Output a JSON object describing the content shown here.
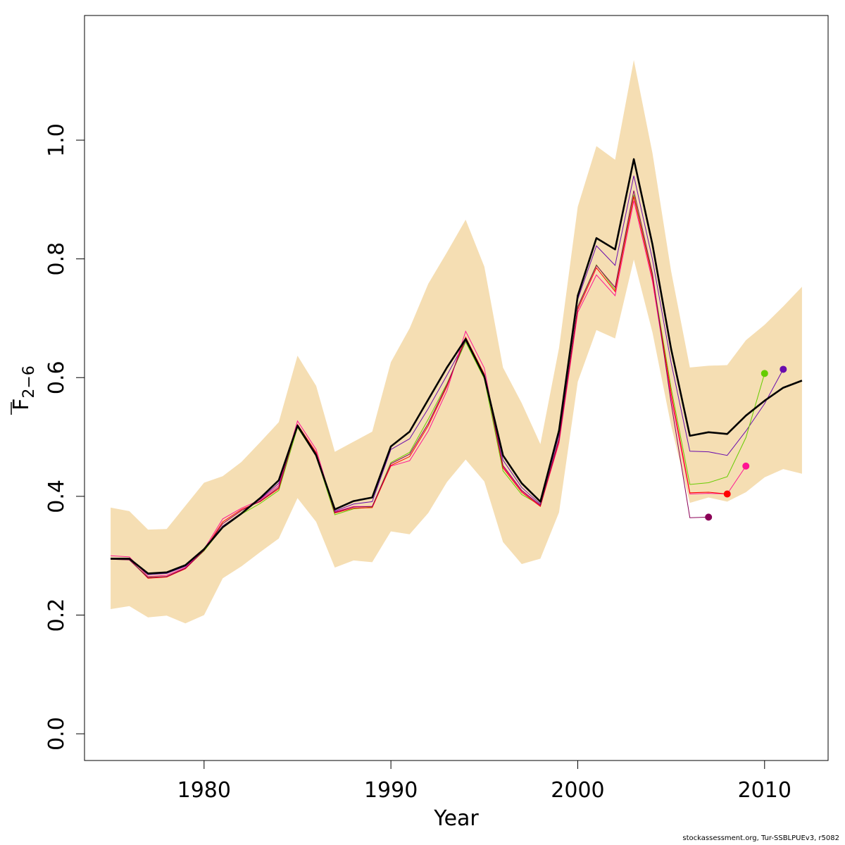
{
  "chart_data": {
    "type": "line",
    "xlabel": "Year",
    "ylabel_main": "F",
    "ylabel_sub": "2−6",
    "xlim": [
      1973.6,
      2013.4
    ],
    "ylim": [
      -0.045,
      1.21
    ],
    "x_ticks": [
      1980,
      1990,
      2000,
      2010
    ],
    "y_ticks": [
      0.0,
      0.2,
      0.4,
      0.6,
      0.8,
      1.0
    ],
    "y_tick_labels": [
      "0.0",
      "0.2",
      "0.4",
      "0.6",
      "0.8",
      "1.0"
    ],
    "band": {
      "color": "#f5deb3",
      "x": [
        1975,
        1976,
        1977,
        1978,
        1979,
        1980,
        1981,
        1982,
        1983,
        1984,
        1985,
        1986,
        1987,
        1988,
        1989,
        1990,
        1991,
        1992,
        1993,
        1994,
        1995,
        1996,
        1997,
        1998,
        1999,
        2000,
        2001,
        2002,
        2003,
        2004,
        2005,
        2006,
        2007,
        2008,
        2009,
        2010,
        2011,
        2012
      ],
      "upper": [
        0.381,
        0.375,
        0.344,
        0.345,
        0.384,
        0.423,
        0.434,
        0.458,
        0.491,
        0.525,
        0.637,
        0.586,
        0.475,
        0.492,
        0.509,
        0.626,
        0.683,
        0.758,
        0.811,
        0.866,
        0.787,
        0.617,
        0.557,
        0.488,
        0.65,
        0.888,
        0.99,
        0.967,
        1.135,
        0.978,
        0.779,
        0.617,
        0.62,
        0.621,
        0.663,
        0.689,
        0.72,
        0.753
      ],
      "lower": [
        0.21,
        0.215,
        0.196,
        0.199,
        0.186,
        0.2,
        0.262,
        0.282,
        0.306,
        0.329,
        0.397,
        0.357,
        0.28,
        0.292,
        0.289,
        0.341,
        0.336,
        0.372,
        0.424,
        0.462,
        0.425,
        0.323,
        0.286,
        0.295,
        0.373,
        0.593,
        0.68,
        0.666,
        0.799,
        0.676,
        0.519,
        0.389,
        0.398,
        0.391,
        0.407,
        0.432,
        0.446,
        0.438
      ]
    },
    "main_series": {
      "color": "#000000",
      "x": [
        1975,
        1976,
        1977,
        1978,
        1979,
        1980,
        1981,
        1982,
        1983,
        1984,
        1985,
        1986,
        1987,
        1988,
        1989,
        1990,
        1991,
        1992,
        1993,
        1994,
        1995,
        1996,
        1997,
        1998,
        1999,
        2000,
        2001,
        2002,
        2003,
        2004,
        2005,
        2006,
        2007,
        2008,
        2009,
        2010,
        2011,
        2012
      ],
      "y": [
        0.295,
        0.295,
        0.27,
        0.272,
        0.284,
        0.311,
        0.348,
        0.371,
        0.397,
        0.427,
        0.519,
        0.469,
        0.378,
        0.392,
        0.398,
        0.484,
        0.509,
        0.563,
        0.617,
        0.665,
        0.602,
        0.469,
        0.422,
        0.391,
        0.511,
        0.738,
        0.835,
        0.816,
        0.968,
        0.824,
        0.648,
        0.502,
        0.508,
        0.505,
        0.536,
        0.561,
        0.583,
        0.595
      ]
    },
    "retro_series": [
      {
        "color": "#6a0dad",
        "x": [
          1975,
          1976,
          1977,
          1978,
          1979,
          1980,
          1981,
          1982,
          1983,
          1984,
          1985,
          1986,
          1987,
          1988,
          1989,
          1990,
          1991,
          1992,
          1993,
          1994,
          1995,
          1996,
          1997,
          1998,
          1999,
          2000,
          2001,
          2002,
          2003,
          2004,
          2005,
          2006,
          2007,
          2008,
          2009,
          2010,
          2011
        ],
        "y": [
          0.296,
          0.294,
          0.268,
          0.27,
          0.282,
          0.31,
          0.35,
          0.372,
          0.395,
          0.422,
          0.52,
          0.472,
          0.375,
          0.387,
          0.391,
          0.479,
          0.497,
          0.548,
          0.604,
          0.662,
          0.605,
          0.461,
          0.415,
          0.387,
          0.504,
          0.732,
          0.822,
          0.789,
          0.94,
          0.799,
          0.625,
          0.476,
          0.475,
          0.469,
          0.51,
          0.556,
          0.614
        ]
      },
      {
        "color": "#66cc00",
        "x": [
          1975,
          1976,
          1977,
          1978,
          1979,
          1980,
          1981,
          1982,
          1983,
          1984,
          1985,
          1986,
          1987,
          1988,
          1989,
          1990,
          1991,
          1992,
          1993,
          1994,
          1995,
          1996,
          1997,
          1998,
          1999,
          2000,
          2001,
          2002,
          2003,
          2004,
          2005,
          2006,
          2007,
          2008,
          2009,
          2010
        ],
        "y": [
          0.294,
          0.293,
          0.264,
          0.265,
          0.279,
          0.308,
          0.348,
          0.37,
          0.388,
          0.41,
          0.516,
          0.468,
          0.369,
          0.379,
          0.382,
          0.457,
          0.474,
          0.53,
          0.59,
          0.66,
          0.598,
          0.443,
          0.403,
          0.385,
          0.497,
          0.72,
          0.79,
          0.748,
          0.908,
          0.77,
          0.582,
          0.42,
          0.423,
          0.433,
          0.499,
          0.607
        ]
      },
      {
        "color": "#ff1493",
        "x": [
          1975,
          1976,
          1977,
          1978,
          1979,
          1980,
          1981,
          1982,
          1983,
          1984,
          1985,
          1986,
          1987,
          1988,
          1989,
          1990,
          1991,
          1992,
          1993,
          1994,
          1995,
          1996,
          1997,
          1998,
          1999,
          2000,
          2001,
          2002,
          2003,
          2004,
          2005,
          2006,
          2007,
          2008,
          2009
        ],
        "y": [
          0.3,
          0.298,
          0.265,
          0.267,
          0.28,
          0.311,
          0.362,
          0.38,
          0.394,
          0.418,
          0.527,
          0.479,
          0.374,
          0.383,
          0.383,
          0.451,
          0.46,
          0.51,
          0.578,
          0.678,
          0.616,
          0.45,
          0.409,
          0.384,
          0.49,
          0.71,
          0.773,
          0.738,
          0.898,
          0.762,
          0.566,
          0.404,
          0.405,
          0.404,
          0.451
        ]
      },
      {
        "color": "#ff0000",
        "x": [
          1975,
          1976,
          1977,
          1978,
          1979,
          1980,
          1981,
          1982,
          1983,
          1984,
          1985,
          1986,
          1987,
          1988,
          1989,
          1990,
          1991,
          1992,
          1993,
          1994,
          1995,
          1996,
          1997,
          1998,
          1999,
          2000,
          2001,
          2002,
          2003,
          2004,
          2005,
          2006,
          2007,
          2008
        ],
        "y": [
          0.295,
          0.294,
          0.262,
          0.264,
          0.278,
          0.309,
          0.357,
          0.378,
          0.391,
          0.413,
          0.521,
          0.474,
          0.372,
          0.38,
          0.381,
          0.452,
          0.467,
          0.519,
          0.585,
          0.668,
          0.606,
          0.448,
          0.407,
          0.383,
          0.494,
          0.715,
          0.785,
          0.745,
          0.905,
          0.768,
          0.574,
          0.406,
          0.407,
          0.404
        ]
      },
      {
        "color": "#8b0057",
        "x": [
          1975,
          1976,
          1977,
          1978,
          1979,
          1980,
          1981,
          1982,
          1983,
          1984,
          1985,
          1986,
          1987,
          1988,
          1989,
          1990,
          1991,
          1992,
          1993,
          1994,
          1995,
          1996,
          1997,
          1998,
          1999,
          2000,
          2001,
          2002,
          2003,
          2004,
          2005,
          2006,
          2007
        ],
        "y": [
          0.294,
          0.293,
          0.263,
          0.265,
          0.279,
          0.309,
          0.354,
          0.376,
          0.392,
          0.415,
          0.52,
          0.472,
          0.373,
          0.382,
          0.383,
          0.455,
          0.471,
          0.523,
          0.588,
          0.664,
          0.604,
          0.452,
          0.41,
          0.385,
          0.497,
          0.719,
          0.789,
          0.752,
          0.915,
          0.775,
          0.557,
          0.364,
          0.365
        ]
      }
    ]
  },
  "footer_text": "stockassessment.org, Tur-SSBLPUEv3, r5082"
}
